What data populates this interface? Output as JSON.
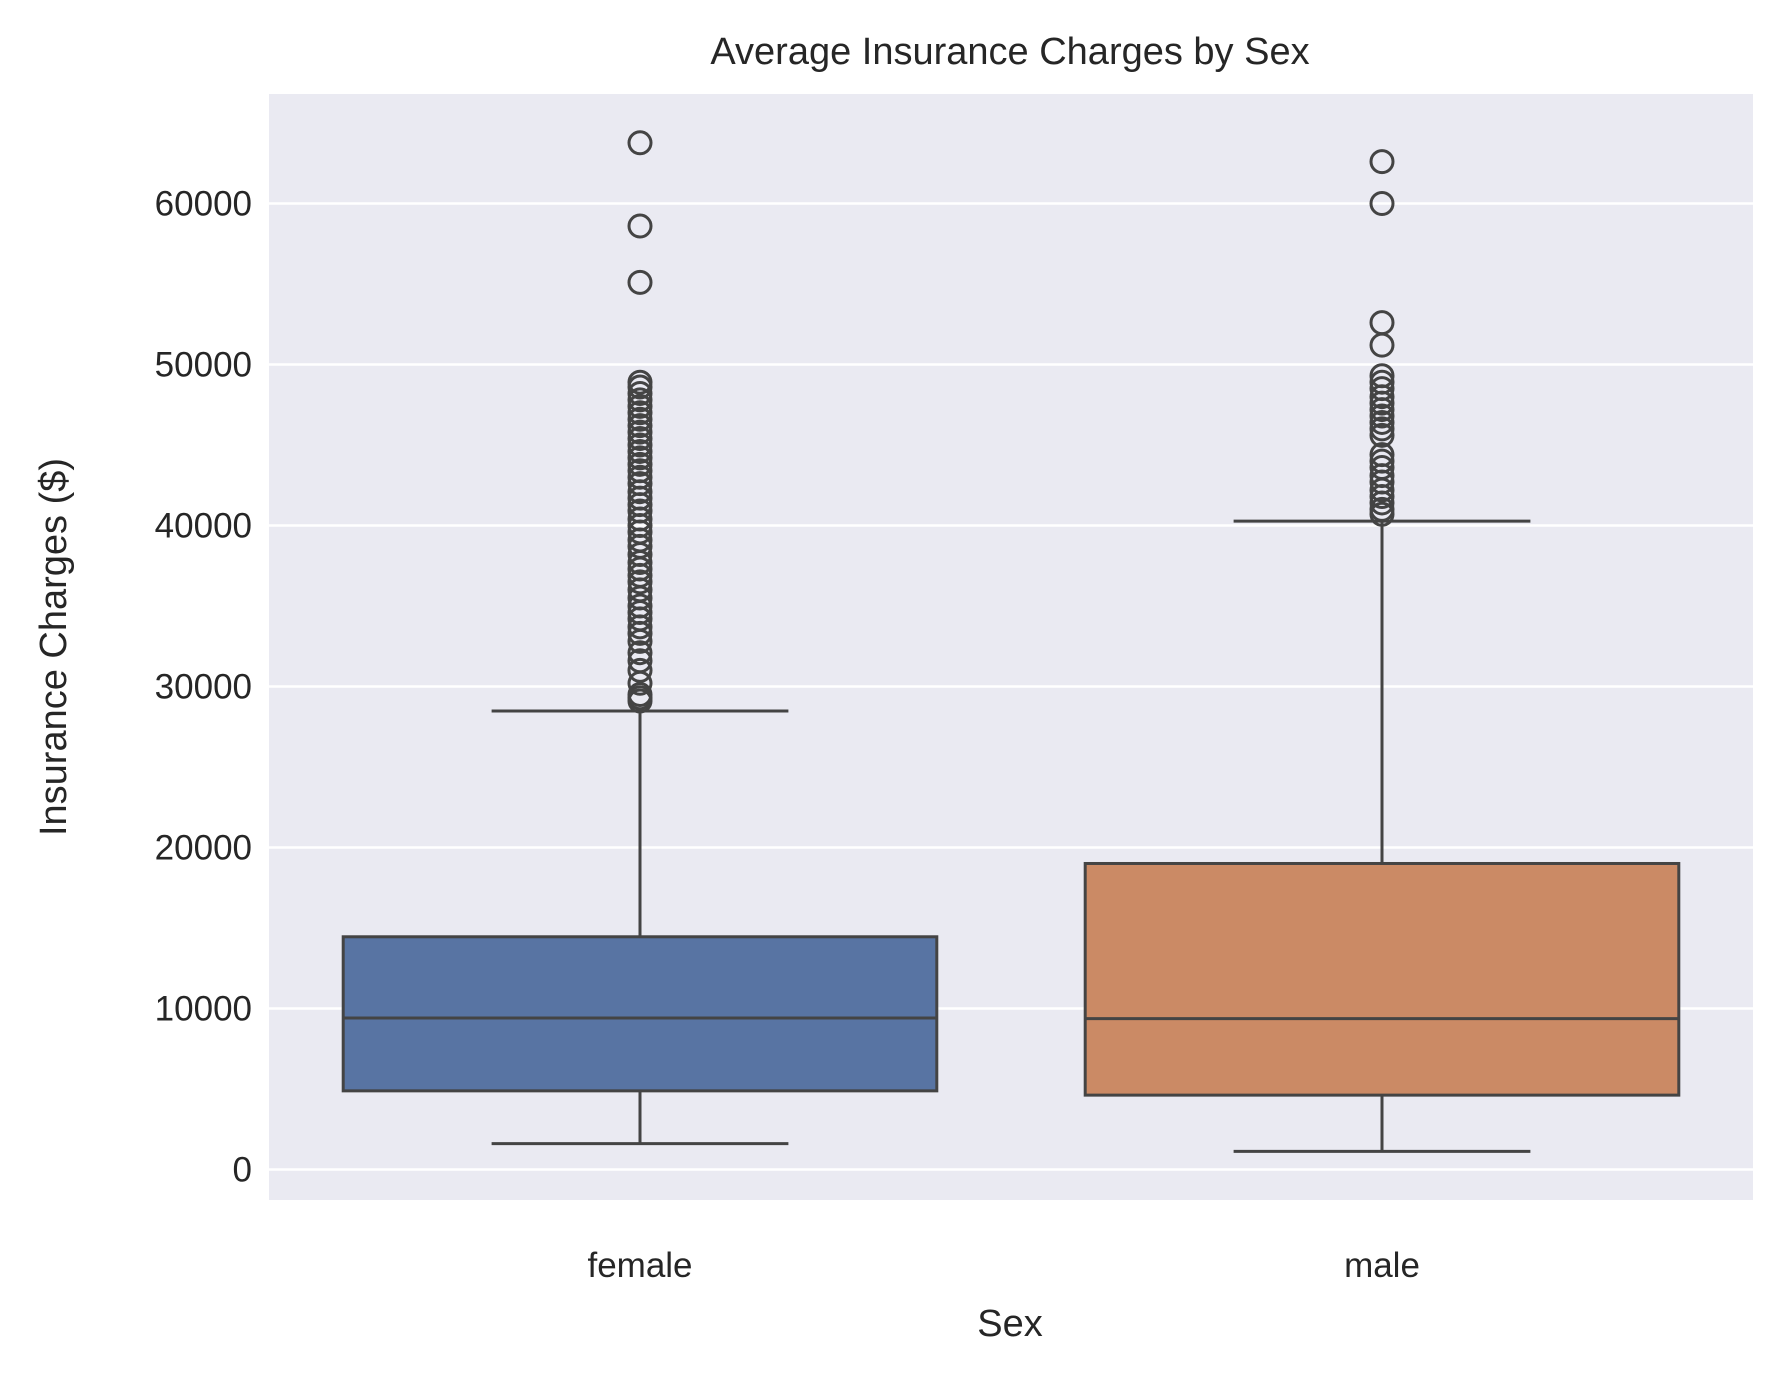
{
  "chart_data": {
    "type": "box",
    "title": "Average Insurance Charges by Sex",
    "xlabel": "Sex",
    "ylabel": "Insurance Charges ($)",
    "ylim": [
      -1900,
      66500
    ],
    "yticks": [
      "0",
      "10000",
      "20000",
      "30000",
      "40000",
      "50000",
      "60000"
    ],
    "ytick_values": [
      0,
      10000,
      20000,
      30000,
      40000,
      50000,
      60000
    ],
    "grid": true,
    "background": "#eaeaf2",
    "categories": [
      "female",
      "male"
    ],
    "series": [
      {
        "category": "female",
        "color": "#5874a3",
        "whisker_low": 1608,
        "q1": 4885,
        "median": 9412,
        "q3": 14455,
        "whisker_high": 28476,
        "outliers": [
          29100,
          29300,
          29500,
          30200,
          31000,
          31600,
          32100,
          32800,
          33300,
          33700,
          34200,
          34600,
          35000,
          35500,
          36000,
          36500,
          36900,
          37300,
          37700,
          38200,
          38700,
          39100,
          39600,
          40000,
          40400,
          40900,
          41300,
          41700,
          42100,
          42600,
          43000,
          43400,
          43800,
          44200,
          44600,
          45000,
          45400,
          45800,
          46200,
          46600,
          47000,
          47400,
          47800,
          48200,
          48600,
          48900,
          55100,
          58600,
          63770
        ]
      },
      {
        "category": "male",
        "color": "#cb8a65",
        "whisker_low": 1122,
        "q1": 4619,
        "median": 9370,
        "q3": 19007,
        "whisker_high": 40274,
        "outliers": [
          40700,
          41000,
          41400,
          41800,
          42200,
          42700,
          43100,
          43600,
          44000,
          44400,
          45600,
          46000,
          46400,
          46800,
          47200,
          47600,
          48000,
          48500,
          48900,
          49300,
          51200,
          52600,
          60000,
          62600
        ]
      }
    ]
  }
}
